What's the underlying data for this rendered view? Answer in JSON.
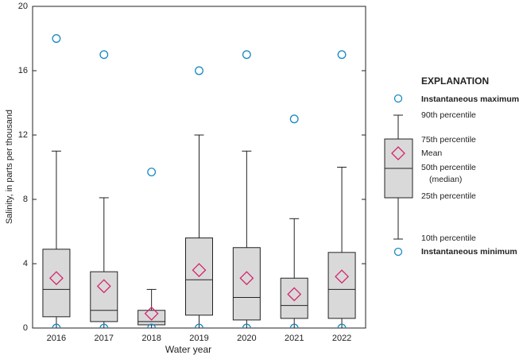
{
  "chart_data": {
    "type": "box",
    "ylabel": "Salinity, in parts per thousand",
    "xlabel": "Water year",
    "categories": [
      "2016",
      "2017",
      "2018",
      "2019",
      "2020",
      "2021",
      "2022"
    ],
    "boxes": {
      "max": [
        18,
        17,
        9.7,
        16,
        17,
        13,
        17
      ],
      "p90": [
        11,
        8.1,
        2.4,
        12,
        11,
        6.8,
        10
      ],
      "p75": [
        4.9,
        3.5,
        1.1,
        5.6,
        5.0,
        3.1,
        4.7
      ],
      "median": [
        2.4,
        1.1,
        0.4,
        3.0,
        1.9,
        1.4,
        2.4
      ],
      "p25": [
        0.7,
        0.4,
        0.2,
        0.8,
        0.5,
        0.6,
        0.6
      ],
      "p10": [
        0,
        0,
        0,
        0,
        0,
        0,
        0
      ],
      "min": [
        0,
        0,
        0,
        0,
        0,
        0,
        0
      ],
      "mean": [
        3.1,
        2.6,
        0.9,
        3.6,
        3.1,
        2.1,
        3.2
      ]
    },
    "box_color": "#d9d9d9",
    "mean_color": "#d6246e",
    "extreme_color": "#1a8abf",
    "ylim": [
      0,
      20
    ],
    "yticks": [
      0,
      4,
      8,
      12,
      16,
      20
    ],
    "grid": false,
    "explanation": {
      "title": "EXPLANATION",
      "max": "Instantaneous maximum",
      "p90": "90th percentile",
      "p75": "75th percentile",
      "mean": "Mean",
      "median": [
        "50th percentile",
        "(median)"
      ],
      "p25": "25th percentile",
      "p10": "10th percentile",
      "min": "Instantaneous minimum"
    }
  }
}
